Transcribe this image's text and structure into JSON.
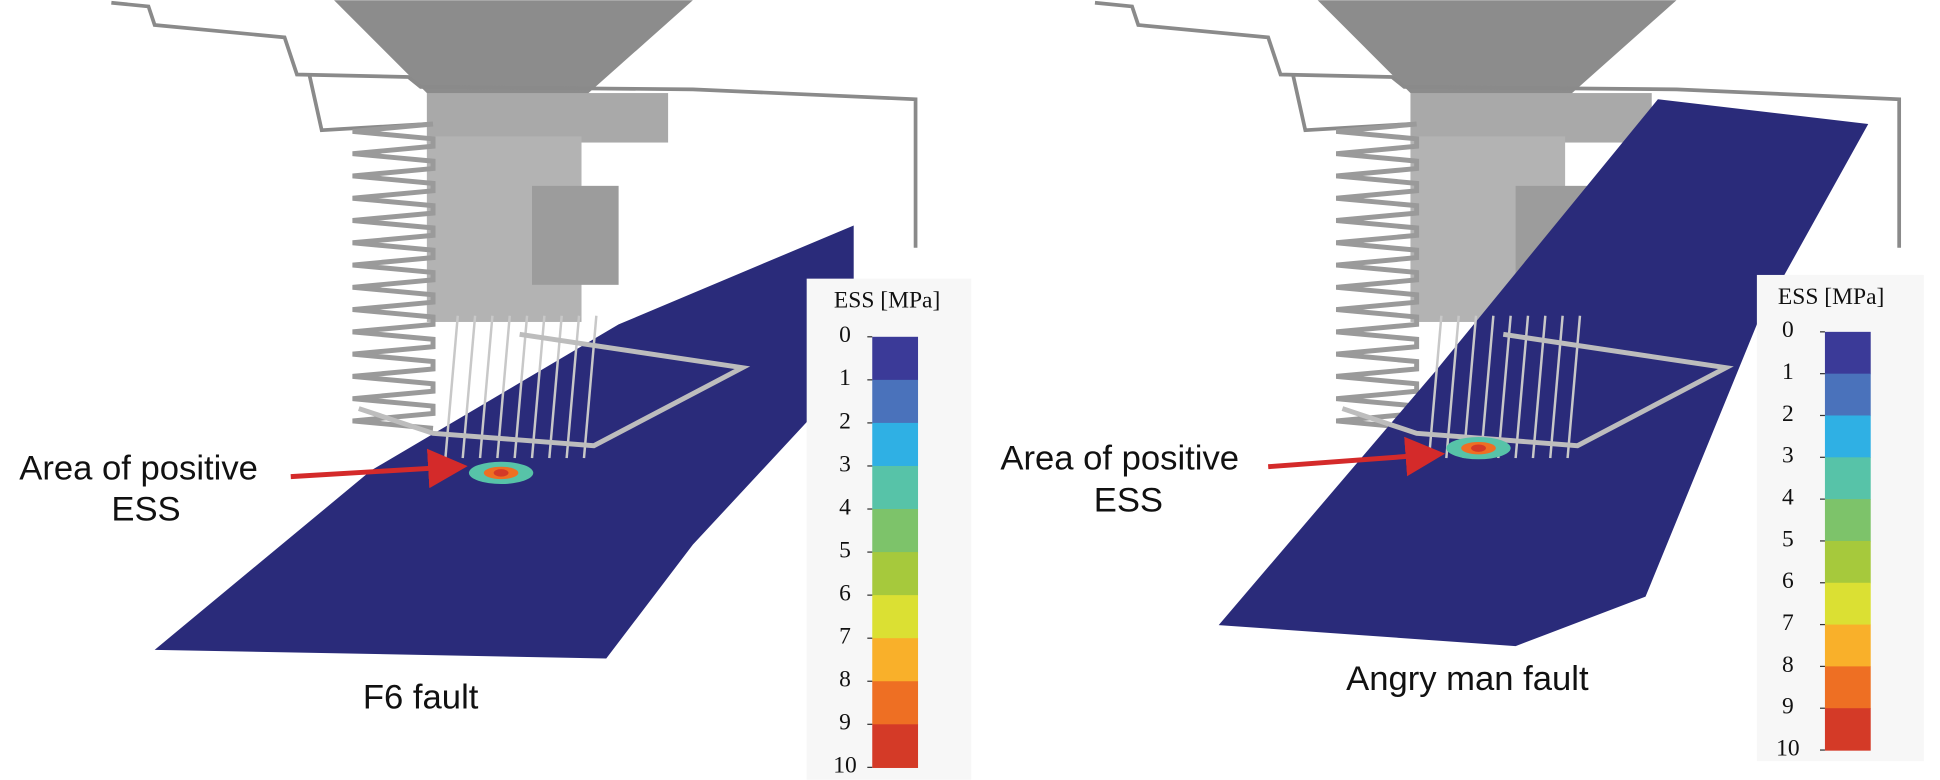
{
  "colorbar_colors": [
    "#3b3a98",
    "#4a72bb",
    "#2fb0e4",
    "#57c3a8",
    "#7dc36a",
    "#a6c93c",
    "#dbe033",
    "#f9b02a",
    "#ee6f23",
    "#d43a27"
  ],
  "panels": [
    {
      "annotation": [
        "Area of positive",
        "ESS"
      ],
      "caption": "F6 fault",
      "colorbar": {
        "title": "ESS [MPa]",
        "ticks": [
          0,
          1,
          2,
          3,
          4,
          5,
          6,
          7,
          8,
          9,
          10
        ]
      }
    },
    {
      "annotation": [
        "Area of positive",
        "ESS"
      ],
      "caption": "Angry man fault",
      "colorbar": {
        "title": "ESS [MPa]",
        "ticks": [
          0,
          1,
          2,
          3,
          4,
          5,
          6,
          7,
          8,
          9,
          10
        ]
      }
    }
  ]
}
